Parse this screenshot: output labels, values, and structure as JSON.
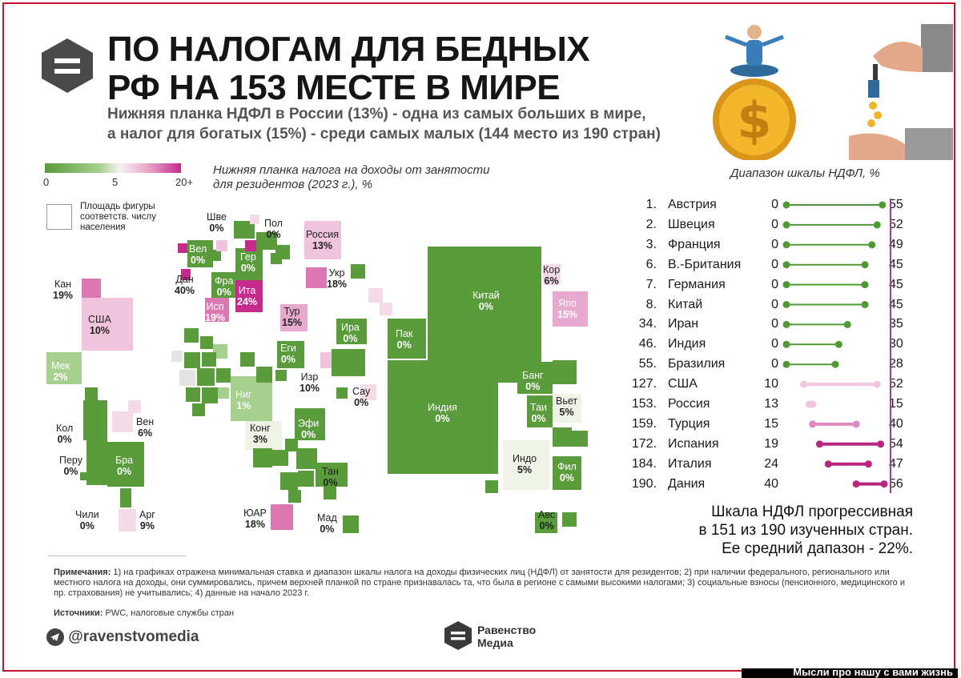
{
  "header": {
    "title_line1": "ПО НАЛОГАМ ДЛЯ БЕДНЫХ",
    "title_line2": "РФ НА 153 МЕСТЕ В МИРЕ",
    "subtitle_line1": "Нижняя планка НДФЛ в России (13%) - одна из самых больших в мире,",
    "subtitle_line2": "а налог для богатых (15%) - среди самых малых (144 место из 190 стран)"
  },
  "legend": {
    "ticks": [
      "0",
      "5",
      "20+"
    ],
    "area_line1": "Площадь фигуры",
    "area_line2": "соответств. числу",
    "area_line3": "населения",
    "colors": {
      "low": "#5a9b3b",
      "mid": "#f6f2f2",
      "high": "#c42b8a"
    }
  },
  "map": {
    "caption_line1": "Нижняя планка налога на доходы от занятости",
    "caption_line2": "для резидентов (2023 г.), %"
  },
  "chart_data": [
    {
      "type": "treemap-cartogram",
      "title": "Нижняя планка налога на доходы от занятости для резидентов (2023 г.), %",
      "scale": {
        "min": 0,
        "mid": 5,
        "max": "20+"
      },
      "points": [
        {
          "label": "Кан",
          "value": "19%"
        },
        {
          "label": "США",
          "value": "10%"
        },
        {
          "label": "Мек",
          "value": "2%"
        },
        {
          "label": "Кол",
          "value": "0%"
        },
        {
          "label": "Вен",
          "value": "6%"
        },
        {
          "label": "Перу",
          "value": "0%"
        },
        {
          "label": "Бра",
          "value": "0%"
        },
        {
          "label": "Чили",
          "value": "0%"
        },
        {
          "label": "Арг",
          "value": "9%"
        },
        {
          "label": "Шве",
          "value": "0%"
        },
        {
          "label": "Пол",
          "value": "0%"
        },
        {
          "label": "Россия",
          "value": "13%"
        },
        {
          "label": "Вел",
          "value": "0%"
        },
        {
          "label": "Гер",
          "value": "0%"
        },
        {
          "label": "Дан",
          "value": "40%"
        },
        {
          "label": "Фра",
          "value": "0%"
        },
        {
          "label": "Ита",
          "value": "24%"
        },
        {
          "label": "Исп",
          "value": "19%"
        },
        {
          "label": "Укр",
          "value": "18%"
        },
        {
          "label": "Тур",
          "value": "15%"
        },
        {
          "label": "Ира",
          "value": "0%"
        },
        {
          "label": "Еги",
          "value": "0%"
        },
        {
          "label": "Изр",
          "value": "10%"
        },
        {
          "label": "Сау",
          "value": "0%"
        },
        {
          "label": "Ниг",
          "value": "1%"
        },
        {
          "label": "Конг",
          "value": "3%"
        },
        {
          "label": "Эфи",
          "value": "0%"
        },
        {
          "label": "Тан",
          "value": "0%"
        },
        {
          "label": "ЮАР",
          "value": "18%"
        },
        {
          "label": "Мад",
          "value": "0%"
        },
        {
          "label": "Пак",
          "value": "0%"
        },
        {
          "label": "Китай",
          "value": "0%"
        },
        {
          "label": "Кор",
          "value": "6%"
        },
        {
          "label": "Япо",
          "value": "15%"
        },
        {
          "label": "Индия",
          "value": "0%"
        },
        {
          "label": "Банг",
          "value": "0%"
        },
        {
          "label": "Таи",
          "value": "0%"
        },
        {
          "label": "Вьет",
          "value": "5%"
        },
        {
          "label": "Индо",
          "value": "5%"
        },
        {
          "label": "Фил",
          "value": "0%"
        },
        {
          "label": "Авс",
          "value": "0%"
        }
      ]
    },
    {
      "type": "dumbbell",
      "title": "Диапазон шкалы НДФЛ, %",
      "xlim": [
        0,
        56
      ],
      "rows": [
        {
          "rank": "1.",
          "country": "Австрия",
          "min": 0,
          "max": 55
        },
        {
          "rank": "2.",
          "country": "Швеция",
          "min": 0,
          "max": 52
        },
        {
          "rank": "3.",
          "country": "Франция",
          "min": 0,
          "max": 49
        },
        {
          "rank": "6.",
          "country": "В.-Британия",
          "min": 0,
          "max": 45
        },
        {
          "rank": "7.",
          "country": "Германия",
          "min": 0,
          "max": 45
        },
        {
          "rank": "8.",
          "country": "Китай",
          "min": 0,
          "max": 45
        },
        {
          "rank": "34.",
          "country": "Иран",
          "min": 0,
          "max": 35
        },
        {
          "rank": "46.",
          "country": "Индия",
          "min": 0,
          "max": 30
        },
        {
          "rank": "55.",
          "country": "Бразилия",
          "min": 0,
          "max": 28
        },
        {
          "rank": "127.",
          "country": "США",
          "min": 10,
          "max": 52
        },
        {
          "rank": "153.",
          "country": "Россия",
          "min": 13,
          "max": 15
        },
        {
          "rank": "159.",
          "country": "Турция",
          "min": 15,
          "max": 40
        },
        {
          "rank": "172.",
          "country": "Испания",
          "min": 19,
          "max": 54
        },
        {
          "rank": "184.",
          "country": "Италия",
          "min": 24,
          "max": 47
        },
        {
          "rank": "190.",
          "country": "Дания",
          "min": 40,
          "max": 56
        }
      ]
    }
  ],
  "dumbbell_colors": {
    "zero": "#4f9a34",
    "low": "#f4c6dd",
    "mid": "#e08ac0",
    "high": "#b8247e"
  },
  "summary": {
    "line1": "Шкала НДФЛ прогрессивная",
    "line2": "в 151 из 190 изученных стран.",
    "line3": "Ее средний дапазон - 22%."
  },
  "notes": {
    "label": "Примечания:",
    "text": " 1) на графиках отражена минимальная ставка и диапазон шкалы налога на доходы физических лиц (НДФЛ) от занятости для резидентов; 2) при наличии федерального, регионального или местного налога на доходы, они суммировались, причем верхней планкой по стране признавалась та, что была в регионе с самыми высокими налогами; 3) социальные взносы (пенсионного, медицинского и пр. страхования) не учитывались; 4) данные на начало 2023 г.",
    "sources_label": "Источники:",
    "sources_text": " PWC, налоговые службы стран"
  },
  "footer": {
    "handle": "@ravenstvomedia",
    "brand_line1": "Равенство",
    "brand_line2": "Медиа",
    "watermark": "Мысли про нашу с вами жизнь"
  }
}
